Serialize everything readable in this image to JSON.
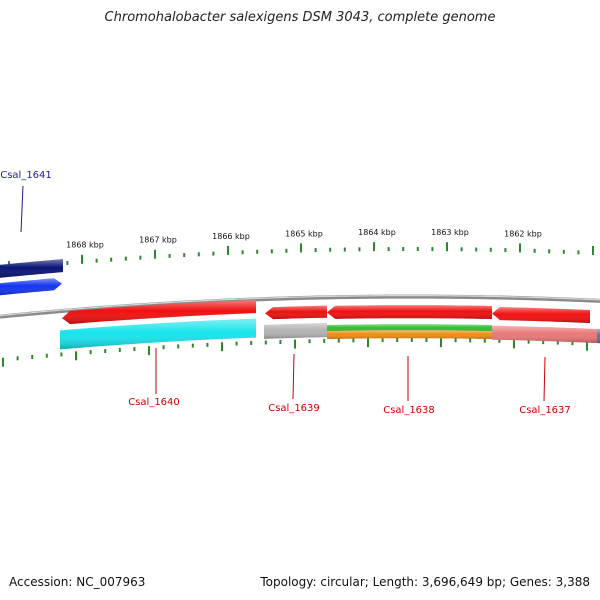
{
  "title": "Chromohalobacter salexigens DSM 3043, complete genome",
  "footer": {
    "accession": "Accession: NC_007963",
    "summary": "Topology: circular; Length: 3,696,649 bp; Genes: 3,388"
  },
  "colors": {
    "tick": "#2a8a2a",
    "backbone": "#8a8a8a",
    "label_forward": "#1a1a9c",
    "label_reverse": "#cc0000"
  },
  "ruler": {
    "labels": [
      "1868 kbp",
      "1867 kbp",
      "1866 kbp",
      "1865 kbp",
      "1864 kbp",
      "1863 kbp",
      "1862 kbp"
    ]
  },
  "genes": [
    {
      "name": "Csal_1641",
      "label": "Csal_1641",
      "strand": "forward"
    },
    {
      "name": "Csal_1640",
      "label": "Csal_1640",
      "strand": "reverse"
    },
    {
      "name": "Csal_1639",
      "label": "Csal_1639",
      "strand": "reverse"
    },
    {
      "name": "Csal_1638",
      "label": "Csal_1638",
      "strand": "reverse"
    },
    {
      "name": "Csal_1637",
      "label": "Csal_1637",
      "strand": "reverse"
    }
  ],
  "features": [
    {
      "name": "gene-dark-blue",
      "color": "#0a1475"
    },
    {
      "name": "cds-blue",
      "color": "#1434f0"
    },
    {
      "name": "gene-red-1640",
      "color": "#f01010"
    },
    {
      "name": "cds-cyan-1640",
      "color": "#18e4ec"
    },
    {
      "name": "gene-red-1639",
      "color": "#f01010"
    },
    {
      "name": "cds-grey-1639",
      "color": "#b4b4b4"
    },
    {
      "name": "gene-red-1638",
      "color": "#f01010"
    },
    {
      "name": "cds-green-1638",
      "color": "#30c030"
    },
    {
      "name": "cds-orange-1638",
      "color": "#f08c10"
    },
    {
      "name": "gene-red-1637",
      "color": "#f01010"
    },
    {
      "name": "cds-pink-1637",
      "color": "#e87878"
    },
    {
      "name": "cds-steel-edge",
      "color": "#4a78b8"
    }
  ]
}
